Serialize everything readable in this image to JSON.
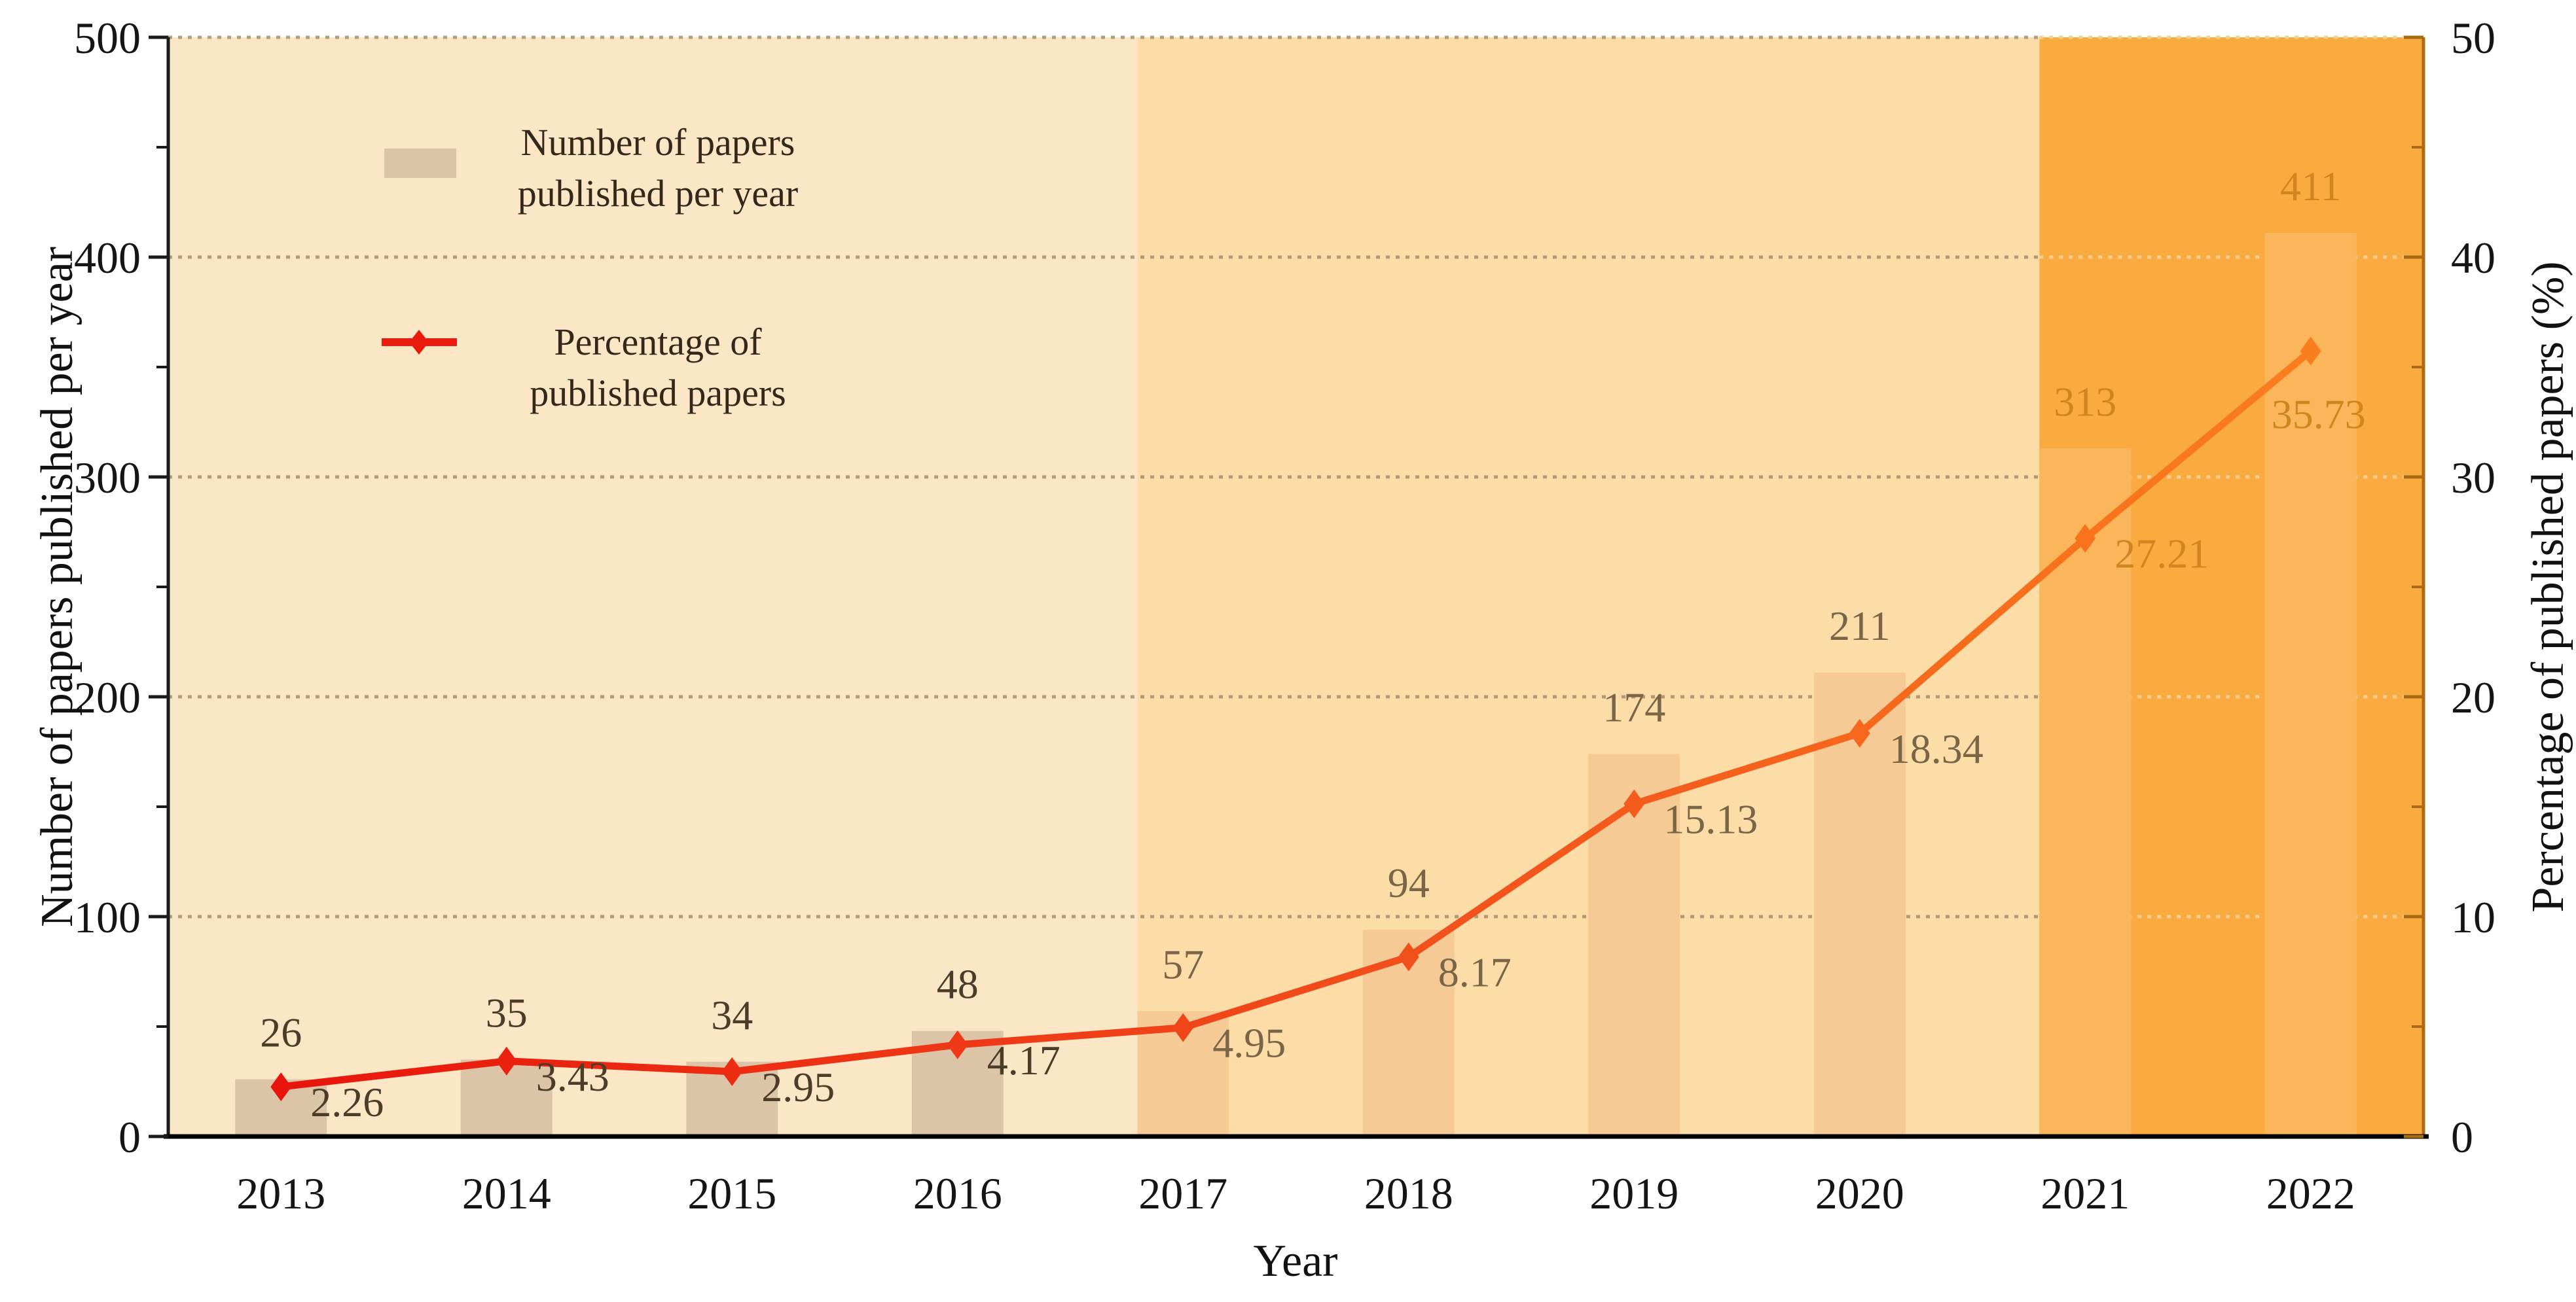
{
  "chart_data": {
    "type": "bar+line",
    "title": "",
    "xlabel": "Year",
    "ylabel_left": "Number of papers published per year",
    "ylabel_right": "Percentage of published papers (%)",
    "categories": [
      "2013",
      "2014",
      "2015",
      "2016",
      "2017",
      "2018",
      "2019",
      "2020",
      "2021",
      "2022"
    ],
    "series": [
      {
        "name": "Number of papers published per year",
        "type": "bar",
        "axis": "left",
        "values": [
          26,
          35,
          34,
          48,
          57,
          94,
          174,
          211,
          313,
          411
        ]
      },
      {
        "name": "Percentage of published papers",
        "type": "line",
        "axis": "right",
        "marker": "diamond",
        "values": [
          2.26,
          3.43,
          2.95,
          4.17,
          4.95,
          8.17,
          15.13,
          18.34,
          27.21,
          35.73
        ]
      }
    ],
    "ylim_left": [
      0,
      500
    ],
    "ylim_right": [
      0,
      50
    ],
    "yticks_left": [
      0,
      100,
      200,
      300,
      400,
      500
    ],
    "yticks_right": [
      0,
      10,
      20,
      30,
      40,
      50
    ],
    "minor_tick_step_left": 50,
    "minor_tick_step_right": 5,
    "grid": "dotted horizontal lines at major ticks",
    "legend_position": "upper-left inside plot",
    "legend": [
      {
        "lines": [
          "Number of papers",
          "published per year"
        ],
        "icon": "bar-swatch"
      },
      {
        "lines": [
          "Percentage of",
          "published papers"
        ],
        "icon": "red-line-diamond"
      }
    ],
    "background_bands": [
      {
        "label": "2013-2016",
        "start_index": 0,
        "band_color": "#FBE7C6",
        "bar_color": "#DCC5A7",
        "label_color": "#4C3D29"
      },
      {
        "label": "2017-2020",
        "start_index": 4,
        "band_color": "#FCDCA7",
        "bar_color": "#F6CA94",
        "label_color": "#7A6647"
      },
      {
        "label": "2021-2022",
        "start_index": 8,
        "band_color": "#FAAB40",
        "bar_color": "#FBB65C",
        "label_color": "#D0851E"
      }
    ],
    "line_gradient": [
      "#E8150C",
      "#F14A1B",
      "#FA7E1D"
    ],
    "colors": {
      "grid_dark": "#9B8262",
      "grid_light": "#F8CF92",
      "left_axis": "#1A1A1A",
      "bottom_axis": "#000000",
      "right_axis": "#A96C15",
      "tick_label": "#151515",
      "legend_text": "#34281A",
      "legend_line": "#EA1A0D"
    }
  }
}
